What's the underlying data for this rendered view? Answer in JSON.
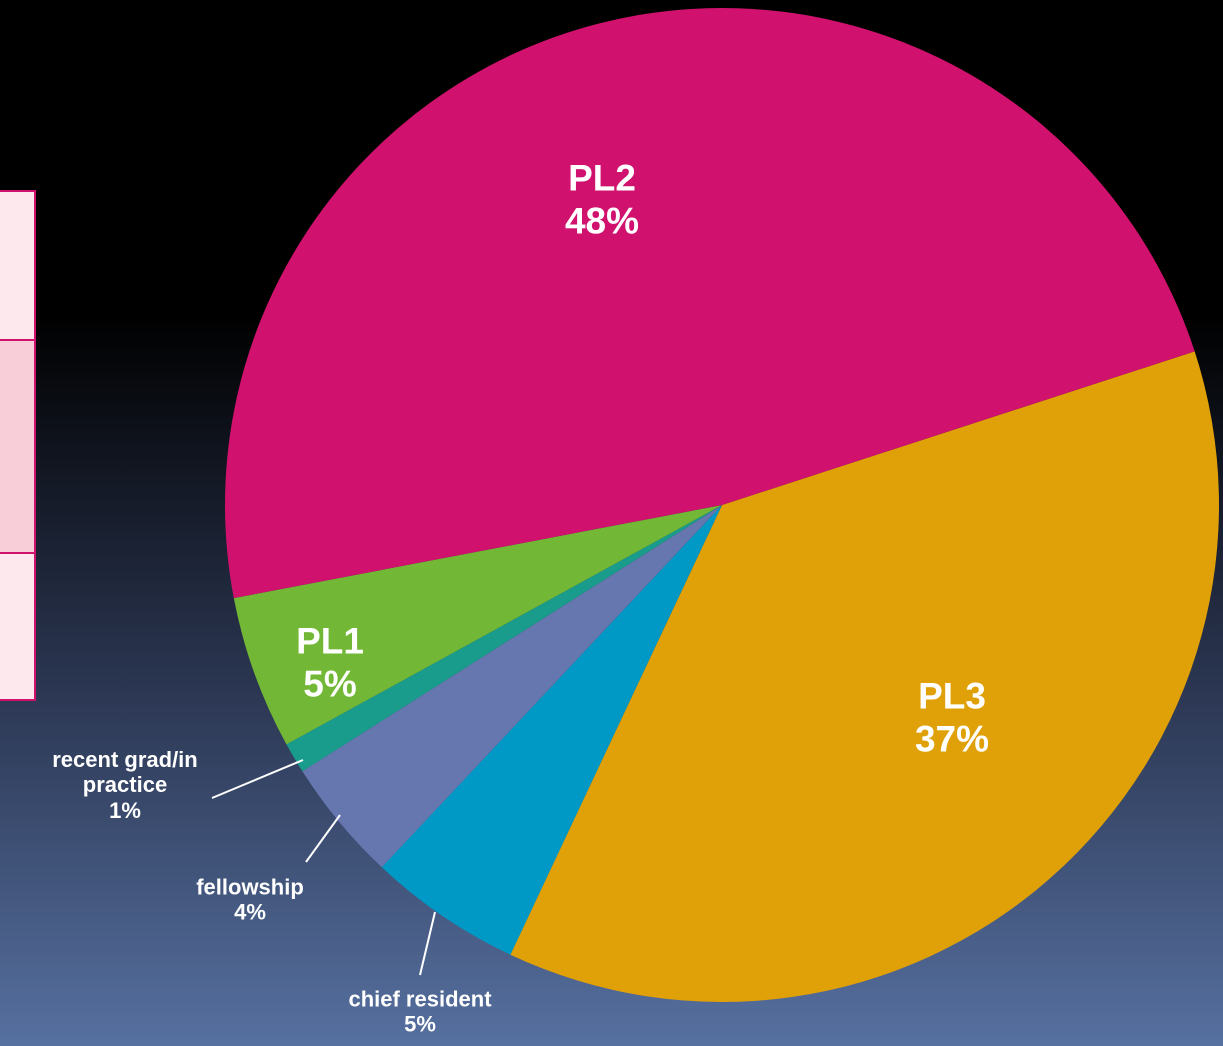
{
  "chart_data": {
    "type": "pie",
    "categories": [
      "PL3",
      "chief resident",
      "fellowship",
      "recent grad/in practice",
      "PL1",
      "PL2"
    ],
    "values": [
      37,
      5,
      4,
      1,
      5,
      48
    ],
    "value_labels": [
      "37%",
      "5%",
      "4%",
      "1%",
      "5%",
      "48%"
    ],
    "colors": [
      "#e0a108",
      "#0099c6",
      "#6677b0",
      "#1a9c8c",
      "#72b836",
      "#d0126e"
    ]
  }
}
